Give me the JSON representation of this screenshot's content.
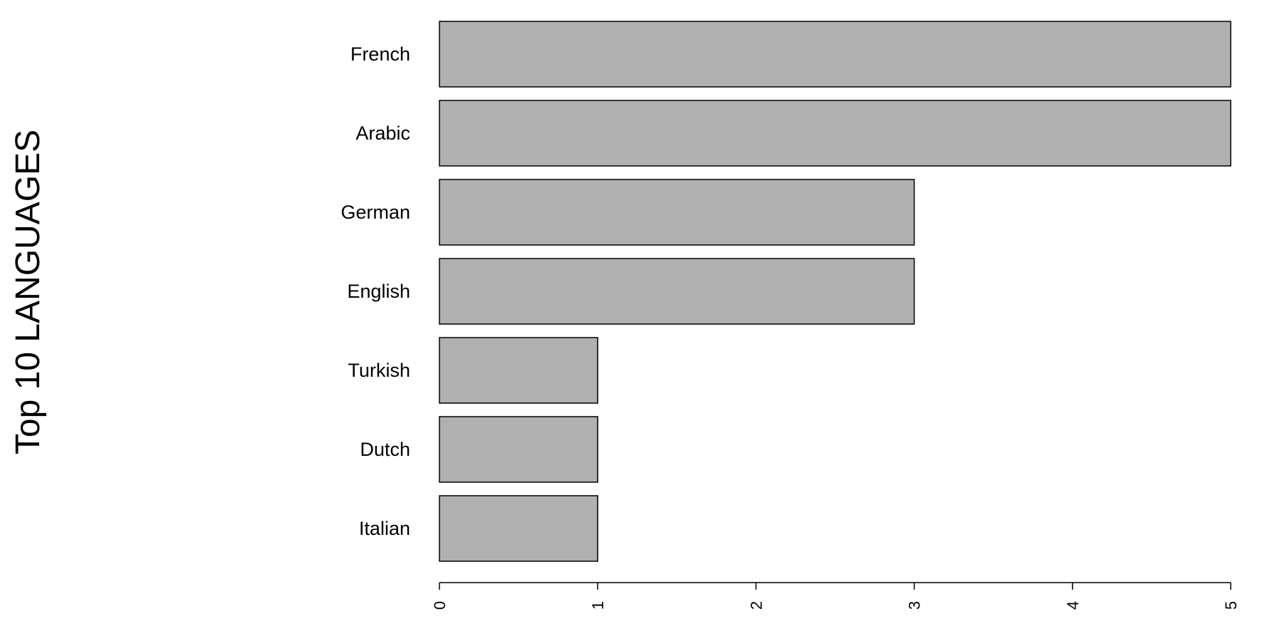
{
  "chart_data": {
    "type": "bar",
    "orientation": "horizontal",
    "ylabel": "Top 10 LANGUAGES",
    "categories": [
      "French",
      "Arabic",
      "German",
      "English",
      "Turkish",
      "Dutch",
      "Italian"
    ],
    "values": [
      5,
      5,
      3,
      3,
      1,
      1,
      1
    ],
    "xlim": [
      0,
      5
    ],
    "xticks": [
      "0",
      "1",
      "2",
      "3",
      "4",
      "5"
    ],
    "grid": false,
    "colors": {
      "bar_fill": "#b0b0b0",
      "bar_stroke": "#000000"
    }
  }
}
